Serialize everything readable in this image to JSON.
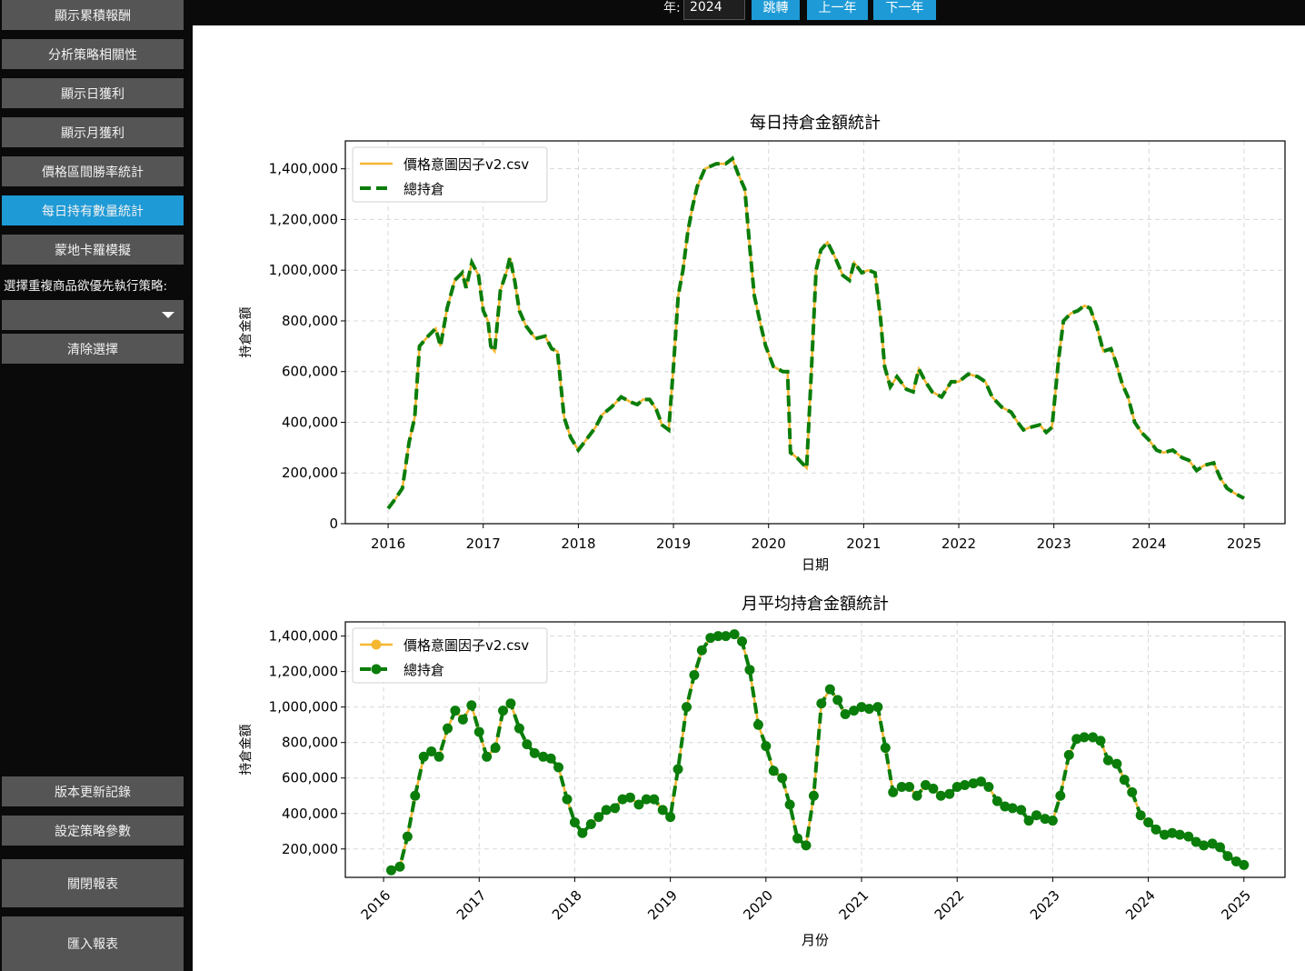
{
  "sidebar": {
    "buttons_top": [
      "顯示累積報酬",
      "分析策略相關性",
      "顯示日獲利",
      "顯示月獲利",
      "價格區間勝率統計",
      "每日持有數量統計",
      "蒙地卡羅模擬"
    ],
    "active_index": 5,
    "strategy_label": "選擇重複商品欲優先執行策略:",
    "select_value": "",
    "clear_button": "清除選擇",
    "buttons_bottom": [
      "版本更新記錄",
      "設定策略參數",
      "關閉報表",
      "匯入報表"
    ]
  },
  "topbar": {
    "year_label": "年:",
    "year_value": "2024",
    "jump_button": "跳轉",
    "prev_year_button": "上一年",
    "next_year_button": "下一年"
  },
  "colors": {
    "accent": "#1e9ad6",
    "button": "#555555",
    "series_strategy": "#f5b731",
    "series_total": "#0a7d0a"
  },
  "chart_data": [
    {
      "type": "line",
      "title": "每日持倉金額統計",
      "xlabel": "日期",
      "ylabel": "持倉金額",
      "x_ticks": [
        "2016",
        "2017",
        "2018",
        "2019",
        "2020",
        "2021",
        "2022",
        "2023",
        "2024",
        "2025"
      ],
      "y_ticks": [
        "0",
        "200,000",
        "400,000",
        "600,000",
        "800,000",
        "1,000,000",
        "1,200,000",
        "1,400,000"
      ],
      "xlim": [
        2015.55,
        2025.43
      ],
      "ylim": [
        0,
        1510000
      ],
      "legend": [
        "價格意圖因子v2.csv",
        "總持倉"
      ],
      "points": [
        [
          2016.0,
          60000
        ],
        [
          2016.08,
          100000
        ],
        [
          2016.15,
          140000
        ],
        [
          2016.22,
          320000
        ],
        [
          2016.28,
          420000
        ],
        [
          2016.33,
          700000
        ],
        [
          2016.42,
          740000
        ],
        [
          2016.5,
          770000
        ],
        [
          2016.55,
          700000
        ],
        [
          2016.62,
          850000
        ],
        [
          2016.7,
          960000
        ],
        [
          2016.78,
          990000
        ],
        [
          2016.82,
          930000
        ],
        [
          2016.88,
          1030000
        ],
        [
          2016.95,
          980000
        ],
        [
          2017.0,
          840000
        ],
        [
          2017.05,
          800000
        ],
        [
          2017.08,
          700000
        ],
        [
          2017.12,
          680000
        ],
        [
          2017.18,
          920000
        ],
        [
          2017.25,
          1000000
        ],
        [
          2017.28,
          1050000
        ],
        [
          2017.33,
          960000
        ],
        [
          2017.38,
          840000
        ],
        [
          2017.45,
          780000
        ],
        [
          2017.55,
          730000
        ],
        [
          2017.65,
          740000
        ],
        [
          2017.72,
          690000
        ],
        [
          2017.78,
          680000
        ],
        [
          2017.85,
          420000
        ],
        [
          2017.92,
          340000
        ],
        [
          2018.0,
          290000
        ],
        [
          2018.08,
          330000
        ],
        [
          2018.18,
          380000
        ],
        [
          2018.25,
          430000
        ],
        [
          2018.35,
          460000
        ],
        [
          2018.45,
          500000
        ],
        [
          2018.55,
          480000
        ],
        [
          2018.62,
          470000
        ],
        [
          2018.68,
          490000
        ],
        [
          2018.75,
          490000
        ],
        [
          2018.82,
          450000
        ],
        [
          2018.88,
          390000
        ],
        [
          2018.95,
          370000
        ],
        [
          2019.0,
          620000
        ],
        [
          2019.05,
          900000
        ],
        [
          2019.1,
          1000000
        ],
        [
          2019.15,
          1150000
        ],
        [
          2019.2,
          1250000
        ],
        [
          2019.25,
          1330000
        ],
        [
          2019.33,
          1400000
        ],
        [
          2019.45,
          1420000
        ],
        [
          2019.55,
          1420000
        ],
        [
          2019.62,
          1440000
        ],
        [
          2019.68,
          1380000
        ],
        [
          2019.75,
          1320000
        ],
        [
          2019.8,
          1100000
        ],
        [
          2019.85,
          900000
        ],
        [
          2019.92,
          780000
        ],
        [
          2019.97,
          700000
        ],
        [
          2020.05,
          620000
        ],
        [
          2020.15,
          600000
        ],
        [
          2020.2,
          600000
        ],
        [
          2020.23,
          280000
        ],
        [
          2020.3,
          260000
        ],
        [
          2020.4,
          220000
        ],
        [
          2020.45,
          600000
        ],
        [
          2020.5,
          1000000
        ],
        [
          2020.55,
          1080000
        ],
        [
          2020.62,
          1110000
        ],
        [
          2020.7,
          1050000
        ],
        [
          2020.78,
          980000
        ],
        [
          2020.85,
          960000
        ],
        [
          2020.9,
          1030000
        ],
        [
          2020.98,
          990000
        ],
        [
          2021.05,
          1000000
        ],
        [
          2021.12,
          990000
        ],
        [
          2021.18,
          800000
        ],
        [
          2021.22,
          620000
        ],
        [
          2021.28,
          540000
        ],
        [
          2021.35,
          580000
        ],
        [
          2021.45,
          530000
        ],
        [
          2021.52,
          520000
        ],
        [
          2021.58,
          610000
        ],
        [
          2021.65,
          560000
        ],
        [
          2021.72,
          520000
        ],
        [
          2021.82,
          500000
        ],
        [
          2021.92,
          560000
        ],
        [
          2022.0,
          560000
        ],
        [
          2022.1,
          590000
        ],
        [
          2022.2,
          580000
        ],
        [
          2022.28,
          560000
        ],
        [
          2022.35,
          500000
        ],
        [
          2022.45,
          460000
        ],
        [
          2022.55,
          440000
        ],
        [
          2022.62,
          400000
        ],
        [
          2022.68,
          370000
        ],
        [
          2022.75,
          380000
        ],
        [
          2022.85,
          390000
        ],
        [
          2022.92,
          360000
        ],
        [
          2022.98,
          380000
        ],
        [
          2023.05,
          650000
        ],
        [
          2023.1,
          800000
        ],
        [
          2023.18,
          830000
        ],
        [
          2023.25,
          840000
        ],
        [
          2023.32,
          860000
        ],
        [
          2023.38,
          850000
        ],
        [
          2023.45,
          780000
        ],
        [
          2023.52,
          680000
        ],
        [
          2023.6,
          690000
        ],
        [
          2023.65,
          640000
        ],
        [
          2023.72,
          550000
        ],
        [
          2023.78,
          500000
        ],
        [
          2023.85,
          400000
        ],
        [
          2023.92,
          360000
        ],
        [
          2024.0,
          330000
        ],
        [
          2024.08,
          290000
        ],
        [
          2024.15,
          280000
        ],
        [
          2024.25,
          290000
        ],
        [
          2024.35,
          260000
        ],
        [
          2024.42,
          250000
        ],
        [
          2024.5,
          210000
        ],
        [
          2024.58,
          230000
        ],
        [
          2024.68,
          240000
        ],
        [
          2024.75,
          180000
        ],
        [
          2024.82,
          140000
        ],
        [
          2024.9,
          120000
        ],
        [
          2025.0,
          100000
        ]
      ]
    },
    {
      "type": "line",
      "title": "月平均持倉金額統計",
      "xlabel": "月份",
      "ylabel": "持倉金額",
      "x_ticks": [
        "2016",
        "2017",
        "2018",
        "2019",
        "2020",
        "2021",
        "2022",
        "2023",
        "2024",
        "2025"
      ],
      "y_ticks": [
        "200,000",
        "400,000",
        "600,000",
        "800,000",
        "1,000,000",
        "1,200,000",
        "1,400,000"
      ],
      "xlim": [
        2015.6,
        2025.43
      ],
      "ylim": [
        40000,
        1480000
      ],
      "legend": [
        "價格意圖因子v2.csv",
        "總持倉"
      ],
      "points": [
        [
          2016.08,
          80000
        ],
        [
          2016.17,
          100000
        ],
        [
          2016.25,
          270000
        ],
        [
          2016.33,
          500000
        ],
        [
          2016.42,
          720000
        ],
        [
          2016.5,
          750000
        ],
        [
          2016.58,
          720000
        ],
        [
          2016.67,
          880000
        ],
        [
          2016.75,
          980000
        ],
        [
          2016.83,
          930000
        ],
        [
          2016.92,
          1010000
        ],
        [
          2017.0,
          860000
        ],
        [
          2017.08,
          720000
        ],
        [
          2017.17,
          770000
        ],
        [
          2017.25,
          980000
        ],
        [
          2017.33,
          1020000
        ],
        [
          2017.42,
          880000
        ],
        [
          2017.5,
          790000
        ],
        [
          2017.58,
          740000
        ],
        [
          2017.67,
          720000
        ],
        [
          2017.75,
          710000
        ],
        [
          2017.83,
          660000
        ],
        [
          2017.92,
          480000
        ],
        [
          2018.0,
          350000
        ],
        [
          2018.08,
          290000
        ],
        [
          2018.17,
          340000
        ],
        [
          2018.25,
          380000
        ],
        [
          2018.33,
          420000
        ],
        [
          2018.42,
          430000
        ],
        [
          2018.5,
          480000
        ],
        [
          2018.58,
          490000
        ],
        [
          2018.67,
          450000
        ],
        [
          2018.75,
          480000
        ],
        [
          2018.83,
          480000
        ],
        [
          2018.92,
          420000
        ],
        [
          2019.0,
          380000
        ],
        [
          2019.08,
          650000
        ],
        [
          2019.17,
          1000000
        ],
        [
          2019.25,
          1180000
        ],
        [
          2019.33,
          1320000
        ],
        [
          2019.42,
          1390000
        ],
        [
          2019.5,
          1400000
        ],
        [
          2019.58,
          1400000
        ],
        [
          2019.67,
          1410000
        ],
        [
          2019.75,
          1370000
        ],
        [
          2019.83,
          1210000
        ],
        [
          2019.92,
          900000
        ],
        [
          2020.0,
          780000
        ],
        [
          2020.08,
          640000
        ],
        [
          2020.17,
          600000
        ],
        [
          2020.25,
          450000
        ],
        [
          2020.33,
          260000
        ],
        [
          2020.42,
          220000
        ],
        [
          2020.5,
          500000
        ],
        [
          2020.58,
          1020000
        ],
        [
          2020.67,
          1100000
        ],
        [
          2020.75,
          1040000
        ],
        [
          2020.83,
          960000
        ],
        [
          2020.92,
          980000
        ],
        [
          2021.0,
          1000000
        ],
        [
          2021.08,
          990000
        ],
        [
          2021.17,
          1000000
        ],
        [
          2021.25,
          770000
        ],
        [
          2021.33,
          520000
        ],
        [
          2021.42,
          550000
        ],
        [
          2021.5,
          550000
        ],
        [
          2021.58,
          500000
        ],
        [
          2021.67,
          560000
        ],
        [
          2021.75,
          540000
        ],
        [
          2021.83,
          500000
        ],
        [
          2021.92,
          510000
        ],
        [
          2022.0,
          550000
        ],
        [
          2022.08,
          560000
        ],
        [
          2022.17,
          570000
        ],
        [
          2022.25,
          580000
        ],
        [
          2022.33,
          550000
        ],
        [
          2022.42,
          470000
        ],
        [
          2022.5,
          440000
        ],
        [
          2022.58,
          430000
        ],
        [
          2022.67,
          420000
        ],
        [
          2022.75,
          360000
        ],
        [
          2022.83,
          390000
        ],
        [
          2022.92,
          370000
        ],
        [
          2023.0,
          360000
        ],
        [
          2023.08,
          500000
        ],
        [
          2023.17,
          730000
        ],
        [
          2023.25,
          820000
        ],
        [
          2023.33,
          830000
        ],
        [
          2023.42,
          830000
        ],
        [
          2023.5,
          810000
        ],
        [
          2023.58,
          700000
        ],
        [
          2023.67,
          680000
        ],
        [
          2023.75,
          590000
        ],
        [
          2023.83,
          520000
        ],
        [
          2023.92,
          390000
        ],
        [
          2024.0,
          350000
        ],
        [
          2024.08,
          310000
        ],
        [
          2024.17,
          280000
        ],
        [
          2024.25,
          290000
        ],
        [
          2024.33,
          280000
        ],
        [
          2024.42,
          270000
        ],
        [
          2024.5,
          240000
        ],
        [
          2024.58,
          220000
        ],
        [
          2024.67,
          230000
        ],
        [
          2024.75,
          210000
        ],
        [
          2024.83,
          160000
        ],
        [
          2024.92,
          130000
        ],
        [
          2025.0,
          110000
        ]
      ]
    }
  ]
}
